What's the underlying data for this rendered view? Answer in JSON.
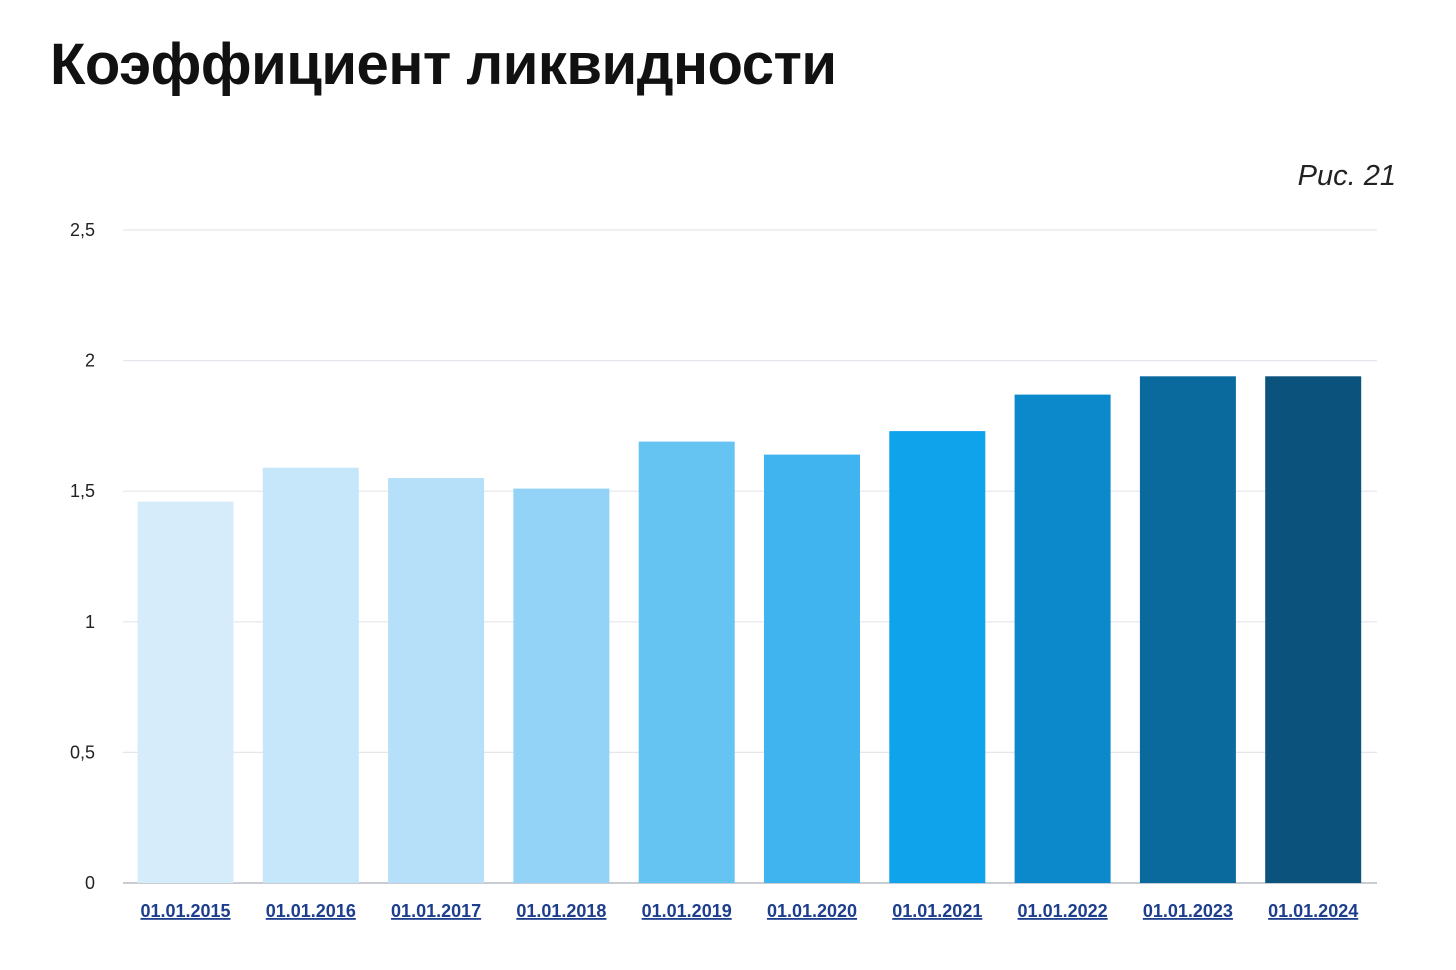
{
  "figure_label": "Рис. 21",
  "chart_data": {
    "type": "bar",
    "title": "Коэффициент ликвидности",
    "xlabel": "",
    "ylabel": "",
    "ylim": [
      0,
      2.5
    ],
    "yticks": [
      0,
      0.5,
      1,
      1.5,
      2,
      2.5
    ],
    "ytick_labels": [
      "0",
      "0,5",
      "1",
      "1,5",
      "2",
      "2,5"
    ],
    "grid": true,
    "categories": [
      "01.01.2015",
      "01.01.2016",
      "01.01.2017",
      "01.01.2018",
      "01.01.2019",
      "01.01.2020",
      "01.01.2021",
      "01.01.2022",
      "01.01.2023",
      "01.01.2024"
    ],
    "values": [
      1.46,
      1.59,
      1.55,
      1.51,
      1.69,
      1.64,
      1.73,
      1.87,
      1.94,
      1.94
    ],
    "bar_colors": [
      "#d6ecfb",
      "#c6e6fa",
      "#b6e0fa",
      "#93d3f7",
      "#66c4f2",
      "#40b4ef",
      "#0fa3ec",
      "#0b89cb",
      "#0a6a9e",
      "#0b527c"
    ],
    "grid_color": "#e3e6ea",
    "axis_color": "#c9ccd2",
    "category_label_color": "#1d3e8c"
  }
}
